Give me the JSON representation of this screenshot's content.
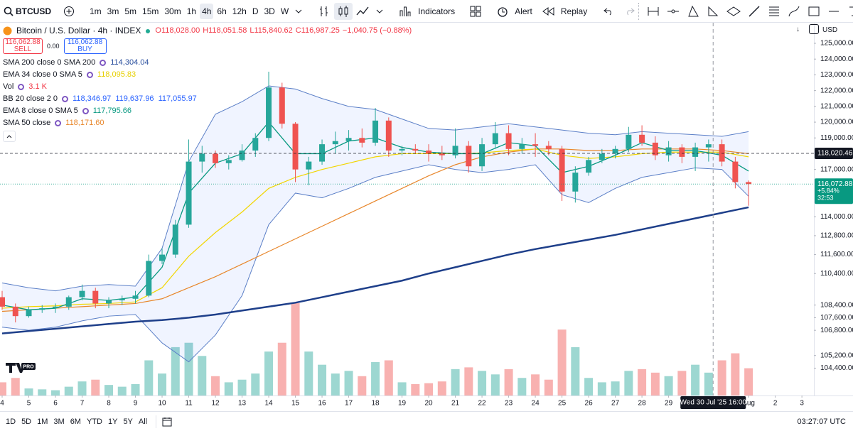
{
  "toolbar": {
    "symbol": "BTCUSD",
    "intervals": [
      "1m",
      "3m",
      "5m",
      "15m",
      "30m",
      "1h",
      "4h",
      "6h",
      "12h",
      "D",
      "3D",
      "W"
    ],
    "indicators": "Indicators",
    "alert": "Alert",
    "replay": "Replay"
  },
  "legend": {
    "title": "Bitcoin / U.S. Dollar · 4h · INDEX",
    "ohlc": [
      "O118,028.00",
      "H118,051.58",
      "L115,840.62",
      "C116,987.25",
      "−1,040.75 (−0.88%)"
    ],
    "trade": {
      "sell_price": "116,062.88",
      "sell": "SELL",
      "spread": "0.00",
      "buy_price": "116,062.88",
      "buy": "BUY"
    },
    "indicators": [
      {
        "label": "SMA 200 close 0 SMA 200",
        "values": [
          "114,304.04"
        ],
        "color": "#2a4f9e"
      },
      {
        "label": "EMA 34 close 0 SMA 5",
        "values": [
          "118,095.83"
        ],
        "color": "#e6cf00"
      },
      {
        "label": "Vol",
        "values": [
          "3.1 K"
        ],
        "color": "#f23645"
      },
      {
        "label": "BB 20 close 2 0",
        "values": [
          "118,346.97",
          "119,637.96",
          "117,055.97"
        ],
        "color": "#2962ff"
      },
      {
        "label": "EMA 8 close 0 SMA 5",
        "values": [
          "117,795.66"
        ],
        "color": "#089981"
      },
      {
        "label": "SMA 50 close",
        "values": [
          "118,171.60"
        ],
        "color": "#e8862a"
      }
    ]
  },
  "currency": "USD",
  "chart_data": {
    "type": "candlestick",
    "up_color": "#26a69a",
    "down_color": "#ef5350",
    "x": [
      4,
      4.5,
      5,
      5.5,
      6,
      6.5,
      7,
      7.5,
      8,
      8.5,
      9,
      9.5,
      10,
      10.5,
      11,
      11.5,
      12,
      12.5,
      13,
      13.5,
      14,
      14.5,
      15,
      15.5,
      16,
      16.5,
      17,
      17.5,
      18,
      18.5,
      19,
      19.5,
      20,
      20.5,
      21,
      21.5,
      22,
      22.5,
      23,
      23.5,
      24,
      24.5,
      25,
      25.5,
      26,
      26.5,
      27,
      27.5,
      28,
      28.5,
      29,
      29.5,
      30,
      30.5,
      31,
      31.5,
      32
    ],
    "open": [
      108900,
      108300,
      107700,
      108100,
      108200,
      108300,
      108900,
      109300,
      108500,
      108700,
      108800,
      109000,
      111200,
      111600,
      113500,
      117500,
      118000,
      117400,
      117600,
      118200,
      119000,
      122200,
      119900,
      117000,
      117500,
      118600,
      118800,
      119000,
      118700,
      120100,
      118200,
      118300,
      118200,
      118000,
      117900,
      118500,
      117200,
      118600,
      119300,
      118300,
      118600,
      118500,
      118300,
      115600,
      116800,
      117600,
      118000,
      118300,
      119200,
      118700,
      117900,
      118400,
      117800,
      118400,
      118600,
      117500,
      116200
    ],
    "high": [
      109300,
      108500,
      108300,
      108400,
      108500,
      109000,
      109700,
      109500,
      108900,
      109000,
      109300,
      111600,
      112000,
      113800,
      118900,
      118500,
      118200,
      117900,
      118600,
      119300,
      123200,
      122500,
      120000,
      117800,
      118900,
      119400,
      119500,
      119600,
      120900,
      120300,
      118500,
      118600,
      118600,
      118500,
      119600,
      118800,
      119000,
      120000,
      119800,
      119000,
      119300,
      118800,
      118500,
      117200,
      117800,
      118300,
      118500,
      119700,
      119800,
      119100,
      118800,
      118600,
      118700,
      118900,
      118900,
      117800,
      116300
    ],
    "low": [
      108100,
      107300,
      107600,
      107900,
      107900,
      108100,
      108700,
      108200,
      108200,
      108400,
      108500,
      108900,
      111000,
      111400,
      113300,
      116800,
      117100,
      117000,
      117500,
      117800,
      118800,
      119600,
      116200,
      116000,
      117300,
      118000,
      118200,
      118400,
      118500,
      117800,
      117900,
      118000,
      117500,
      117600,
      117700,
      116800,
      116900,
      118300,
      117900,
      118000,
      117800,
      117900,
      115000,
      114900,
      116600,
      117400,
      117700,
      118100,
      118500,
      117600,
      117500,
      117400,
      116900,
      117500,
      117200,
      115800,
      114700
    ],
    "close": [
      108300,
      107700,
      108100,
      108200,
      108300,
      108900,
      109300,
      108500,
      108700,
      108800,
      109000,
      111200,
      111600,
      113500,
      117500,
      118000,
      117400,
      117600,
      118200,
      119000,
      122200,
      119900,
      117000,
      117500,
      118600,
      118800,
      119000,
      118700,
      120100,
      118200,
      118300,
      118200,
      118000,
      117900,
      118500,
      117200,
      118600,
      119300,
      118300,
      118600,
      118500,
      118300,
      115600,
      116800,
      117600,
      118000,
      118300,
      119200,
      118700,
      117900,
      118400,
      117800,
      118400,
      118600,
      117500,
      116200,
      116072.88
    ],
    "volume": [
      1.5,
      2.0,
      0.8,
      0.7,
      0.6,
      1.0,
      1.6,
      1.8,
      1.2,
      1.0,
      1.3,
      4.0,
      2.5,
      5.5,
      6.0,
      4.5,
      2.2,
      1.5,
      1.8,
      2.5,
      5.0,
      6.0,
      10.5,
      5.0,
      3.5,
      2.5,
      2.8,
      2.2,
      3.8,
      4.0,
      1.5,
      1.3,
      1.4,
      1.6,
      3.0,
      3.2,
      2.8,
      2.4,
      3.0,
      2.0,
      2.4,
      1.8,
      7.5,
      5.5,
      2.0,
      1.5,
      1.6,
      2.8,
      3.0,
      2.6,
      2.2,
      2.8,
      3.5,
      2.6,
      4.0,
      4.8,
      3.1
    ],
    "line_x": [
      4,
      5,
      6,
      7,
      8,
      9,
      10,
      11,
      12,
      13,
      14,
      15,
      16,
      17,
      18,
      19,
      20,
      21,
      22,
      23,
      24,
      25,
      26,
      27,
      28,
      29,
      30,
      31,
      32
    ],
    "bands": {
      "color": "#5b7fc7",
      "fill": "rgba(41,98,255,0.07)",
      "upper": [
        109800,
        109500,
        109300,
        109600,
        109700,
        109600,
        112000,
        117500,
        120500,
        121300,
        122300,
        122100,
        121500,
        121000,
        120800,
        120200,
        119600,
        119500,
        119700,
        119900,
        119700,
        119500,
        119300,
        119200,
        119400,
        119300,
        119200,
        119100,
        119400
      ],
      "lower": [
        107000,
        106800,
        107000,
        107400,
        107700,
        107800,
        106000,
        104800,
        106500,
        109000,
        113500,
        115500,
        115200,
        115800,
        116500,
        116900,
        117300,
        117000,
        116800,
        117000,
        117300,
        115400,
        114900,
        115800,
        116500,
        116800,
        117100,
        117000,
        115300
      ]
    },
    "lines": [
      {
        "color": "#e8862a",
        "width": 1.2,
        "values": [
          108000,
          108100,
          108200,
          108300,
          108400,
          108500,
          108800,
          109500,
          110200,
          111000,
          111800,
          112600,
          113400,
          114200,
          115000,
          115800,
          116600,
          117300,
          117800,
          118100,
          118300,
          118300,
          118200,
          118200,
          118300,
          118300,
          118300,
          118200,
          118000
        ]
      },
      {
        "color": "#f2d600",
        "width": 1.2,
        "values": [
          108200,
          108300,
          108350,
          108450,
          108500,
          108600,
          109500,
          111500,
          113000,
          114300,
          115800,
          116500,
          117000,
          117400,
          117800,
          118000,
          118000,
          118000,
          118050,
          118200,
          118300,
          117900,
          117700,
          117800,
          118000,
          118100,
          118100,
          118100,
          117800
        ]
      },
      {
        "color": "#089981",
        "width": 1.3,
        "values": [
          108400,
          108100,
          108200,
          108800,
          108700,
          108900,
          110800,
          115500,
          117400,
          118000,
          120000,
          118000,
          118000,
          118800,
          119000,
          118400,
          118100,
          118000,
          118000,
          118700,
          118500,
          116800,
          117200,
          117900,
          118700,
          118200,
          118200,
          117900,
          116900
        ]
      },
      {
        "color": "#1e3f8a",
        "width": 2.5,
        "values": [
          106600,
          106750,
          106900,
          107050,
          107200,
          107350,
          107450,
          107600,
          107800,
          108050,
          108300,
          108550,
          108900,
          109250,
          109600,
          109950,
          110400,
          110800,
          111200,
          111600,
          111950,
          112250,
          112550,
          112850,
          113200,
          113550,
          113900,
          114250,
          114600
        ]
      }
    ],
    "xlim": [
      3.92,
      34.45
    ],
    "ylim": [
      102665,
      125946
    ],
    "grid": false,
    "yticks": [
      {
        "value": 125000,
        "label": "125,000.00"
      },
      {
        "value": 124000,
        "label": "124,000.00"
      },
      {
        "value": 123000,
        "label": "123,000.00"
      },
      {
        "value": 122000,
        "label": "122,000.00"
      },
      {
        "value": 121000,
        "label": "121,000.00"
      },
      {
        "value": 120000,
        "label": "120,000.00"
      },
      {
        "value": 119000,
        "label": "119,000.00"
      },
      {
        "value": 117000,
        "label": "117,000.00"
      },
      {
        "value": 114000,
        "label": "114,000.00"
      },
      {
        "value": 112800,
        "label": "112,800.00"
      },
      {
        "value": 111600,
        "label": "111,600.00"
      },
      {
        "value": 110400,
        "label": "110,400.00"
      },
      {
        "value": 108400,
        "label": "108,400.00"
      },
      {
        "value": 107600,
        "label": "107,600.00"
      },
      {
        "value": 106800,
        "label": "106,800.00"
      },
      {
        "value": 105200,
        "label": "105,200.00"
      },
      {
        "value": 104400,
        "label": "104,400.00"
      }
    ],
    "xticks": [
      4,
      5,
      6,
      7,
      8,
      9,
      10,
      11,
      12,
      13,
      14,
      15,
      16,
      17,
      18,
      19,
      20,
      21,
      22,
      23,
      24,
      25,
      26,
      27,
      28,
      29,
      {
        "value": 32,
        "label": "Aug"
      },
      {
        "value": 33,
        "label": "2"
      },
      {
        "value": 34,
        "label": "3"
      }
    ],
    "price_lines": [
      {
        "value": 118020.46,
        "label": "118,020.46",
        "color": "#131722"
      },
      {
        "value": 116072.88,
        "label": "116,072.88",
        "change": "+5.84%",
        "countdown": "32:53",
        "color": "#089981"
      }
    ],
    "crosshair": {
      "value": 30.67,
      "label": "Wed 30 Jul '25   16:00"
    },
    "logo_badge": "PRO"
  },
  "bottom_bar": {
    "ranges": [
      "1D",
      "5D",
      "1M",
      "3M",
      "6M",
      "YTD",
      "1Y",
      "5Y",
      "All"
    ],
    "clock": "03:27:07 UTC"
  }
}
